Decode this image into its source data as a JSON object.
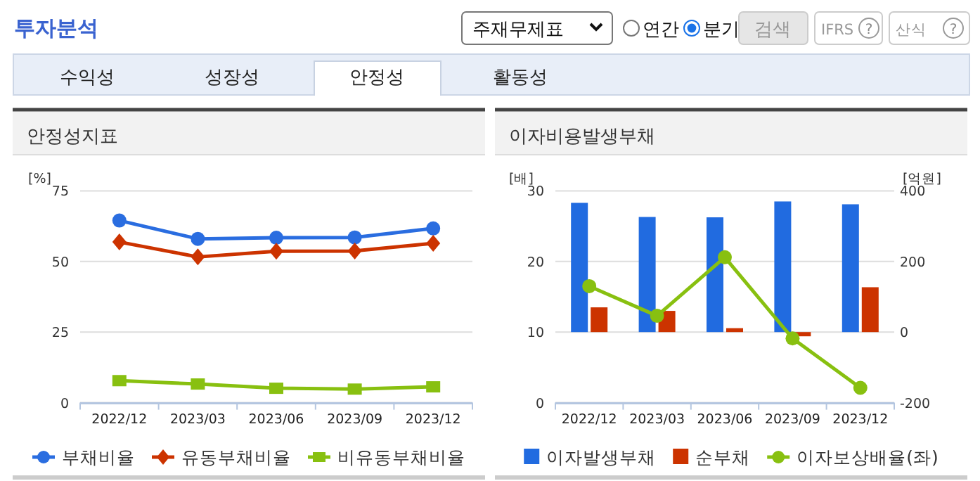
{
  "chart_data": [
    {
      "type": "other",
      "title": "투자분석",
      "annotations": [
        "주재무제표",
        "연간",
        "분기",
        "검색",
        "IFRS",
        "?",
        "산식",
        "?",
        "수익성",
        "성장성",
        "안정성",
        "활동성"
      ]
    },
    {
      "type": "line",
      "title": "안정성지표",
      "ylabel": "[%]",
      "categories": [
        "2022/12",
        "2023/03",
        "2023/06",
        "2023/09",
        "2023/12"
      ],
      "ylim": [
        0,
        75
      ],
      "yticks": [
        0,
        25,
        50,
        75
      ],
      "grid": "y",
      "legend": "bottom",
      "series": [
        {
          "name": "부채비율",
          "color": "#2a6de0",
          "marker": "circle",
          "values": [
            64.5,
            58.0,
            58.4,
            58.5,
            61.7
          ]
        },
        {
          "name": "유동부채비율",
          "color": "#cc3300",
          "marker": "diamond",
          "values": [
            56.9,
            51.6,
            53.6,
            53.7,
            56.4
          ]
        },
        {
          "name": "비유동부채비율",
          "color": "#88c010",
          "marker": "square",
          "values": [
            7.8,
            6.6,
            5.1,
            4.8,
            5.6
          ]
        }
      ]
    },
    {
      "type": "bar",
      "title": "이자비용발생부채",
      "ylabel": "[배]",
      "y2label": "[억원]",
      "categories": [
        "2022/12",
        "2023/03",
        "2023/06",
        "2023/09",
        "2023/12"
      ],
      "ylim": [
        0,
        30
      ],
      "yticks": [
        0,
        10,
        20,
        30
      ],
      "y2lim": [
        -200,
        400
      ],
      "y2ticks": [
        -200,
        0,
        200,
        400
      ],
      "grid": "y",
      "legend": "bottom",
      "series": [
        {
          "name": "이자발생부채",
          "color": "#216be0",
          "axis": "y2",
          "values": [
            366,
            326,
            325,
            370,
            362
          ]
        },
        {
          "name": "순부채",
          "color": "#cc3300",
          "axis": "y2",
          "values": [
            70,
            60,
            11,
            -12,
            127
          ]
        },
        {
          "name": "이자보상배율(좌)",
          "type": "line",
          "marker": "circle",
          "color": "#88c010",
          "values": [
            16.5,
            12.3,
            20.6,
            9.1,
            2.1
          ]
        }
      ]
    }
  ]
}
